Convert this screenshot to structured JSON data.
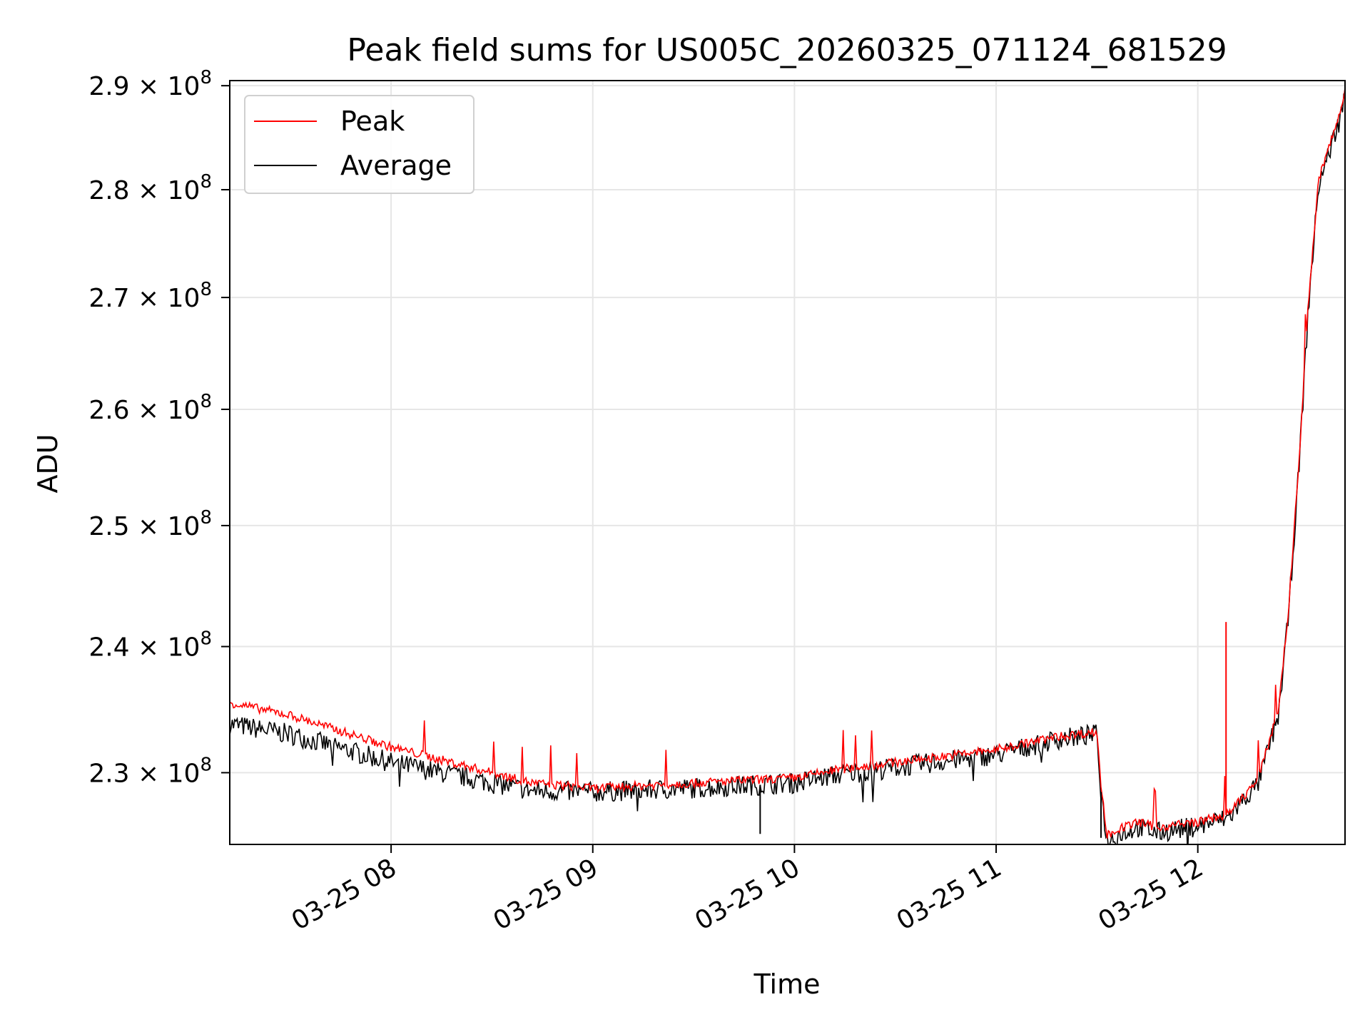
{
  "chart_data": {
    "type": "line",
    "title": "Peak field sums for US005C_20260325_071124_681529",
    "xlabel": "Time",
    "ylabel": "ADU",
    "x_unit": "hours since 03-25 00:00",
    "xlim": [
      7.2,
      12.73
    ],
    "ylim": [
      224500000,
      290500000
    ],
    "yscale": "log",
    "grid": true,
    "legend_position": "top-left",
    "x_ticks": [
      {
        "value": 8,
        "label": "03-25 08"
      },
      {
        "value": 9,
        "label": "03-25 09"
      },
      {
        "value": 10,
        "label": "03-25 10"
      },
      {
        "value": 11,
        "label": "03-25 11"
      },
      {
        "value": 12,
        "label": "03-25 12"
      }
    ],
    "y_ticks": [
      {
        "value": 230000000,
        "mantissa": "2.3",
        "base": "10",
        "exp": "8"
      },
      {
        "value": 240000000,
        "mantissa": "2.4",
        "base": "10",
        "exp": "8"
      },
      {
        "value": 250000000,
        "mantissa": "2.5",
        "base": "10",
        "exp": "8"
      },
      {
        "value": 260000000,
        "mantissa": "2.6",
        "base": "10",
        "exp": "8"
      },
      {
        "value": 270000000,
        "mantissa": "2.7",
        "base": "10",
        "exp": "8"
      },
      {
        "value": 280000000,
        "mantissa": "2.8",
        "base": "10",
        "exp": "8"
      },
      {
        "value": 290000000,
        "mantissa": "2.9",
        "base": "10",
        "exp": "8"
      }
    ],
    "series": [
      {
        "name": "Peak",
        "color": "#ff0000",
        "x": [
          7.2,
          7.5,
          8.0,
          8.5,
          8.7,
          9.0,
          9.5,
          10.0,
          10.2,
          10.5,
          11.0,
          11.3,
          11.5,
          11.52,
          11.55,
          11.6,
          11.7,
          11.8,
          12.0,
          12.15,
          12.3,
          12.4,
          12.45,
          12.5,
          12.55,
          12.6,
          12.65,
          12.7,
          12.73
        ],
        "values": [
          235500000,
          234500000,
          232000000,
          230000000,
          229200000,
          228800000,
          229200000,
          229600000,
          230200000,
          230800000,
          231800000,
          232800000,
          233200000,
          229000000,
          225200000,
          225600000,
          226200000,
          225800000,
          226200000,
          226800000,
          229500000,
          235000000,
          243000000,
          255000000,
          270000000,
          281000000,
          284000000,
          287000000,
          289500000
        ]
      },
      {
        "name": "Average",
        "color": "#000000",
        "x": [
          7.2,
          7.5,
          8.0,
          8.5,
          8.7,
          9.0,
          9.5,
          10.0,
          10.2,
          10.5,
          11.0,
          11.3,
          11.5,
          11.52,
          11.55,
          11.6,
          11.7,
          11.8,
          12.0,
          12.15,
          12.3,
          12.4,
          12.45,
          12.5,
          12.55,
          12.6,
          12.65,
          12.7,
          12.73
        ],
        "values": [
          233800000,
          233000000,
          230800000,
          229200000,
          228600000,
          228500000,
          228800000,
          229200000,
          229800000,
          230400000,
          231400000,
          232600000,
          233000000,
          228500000,
          224800000,
          225200000,
          225800000,
          225400000,
          225900000,
          226500000,
          229200000,
          234500000,
          242500000,
          254500000,
          269500000,
          280500000,
          283500000,
          286500000,
          289000000
        ]
      }
    ],
    "spikes": [
      {
        "x": 11.52,
        "value": 225000000,
        "series": "Average"
      },
      {
        "x": 12.14,
        "value": 242000000,
        "series": "Peak"
      },
      {
        "x": 9.83,
        "value": 225300000,
        "series": "Average"
      }
    ]
  }
}
